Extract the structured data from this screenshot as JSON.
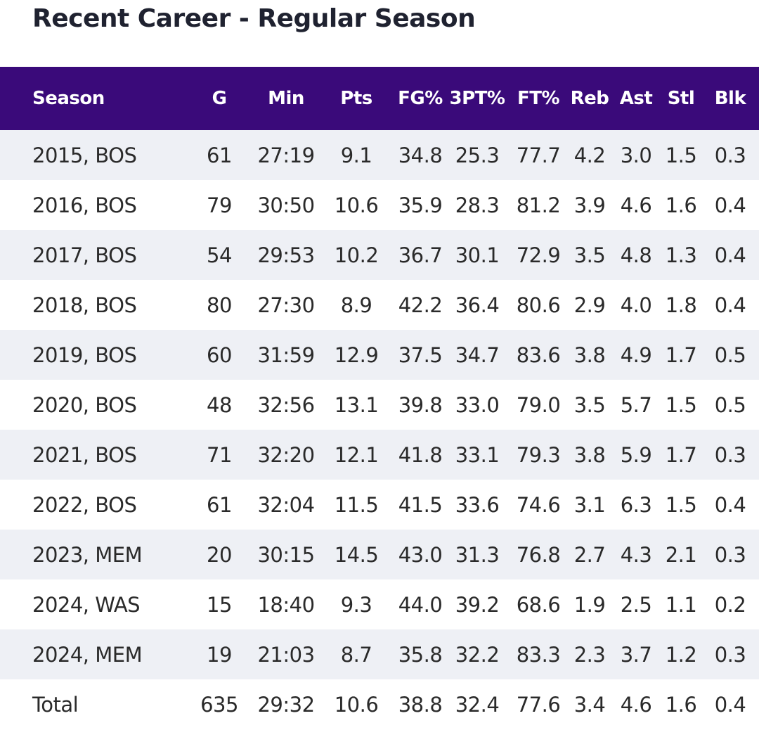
{
  "title": "Recent Career - Regular Season",
  "colors": {
    "header_bg": "#3a0a7a",
    "header_text": "#ffffff",
    "row_alt_bg": "#eef0f5",
    "title_text": "#1f2230"
  },
  "table": {
    "columns": [
      "Season",
      "G",
      "Min",
      "Pts",
      "FG%",
      "3PT%",
      "FT%",
      "Reb",
      "Ast",
      "Stl",
      "Blk"
    ],
    "rows": [
      [
        "2015, BOS",
        "61",
        "27:19",
        "9.1",
        "34.8",
        "25.3",
        "77.7",
        "4.2",
        "3.0",
        "1.5",
        "0.3"
      ],
      [
        "2016, BOS",
        "79",
        "30:50",
        "10.6",
        "35.9",
        "28.3",
        "81.2",
        "3.9",
        "4.6",
        "1.6",
        "0.4"
      ],
      [
        "2017, BOS",
        "54",
        "29:53",
        "10.2",
        "36.7",
        "30.1",
        "72.9",
        "3.5",
        "4.8",
        "1.3",
        "0.4"
      ],
      [
        "2018, BOS",
        "80",
        "27:30",
        "8.9",
        "42.2",
        "36.4",
        "80.6",
        "2.9",
        "4.0",
        "1.8",
        "0.4"
      ],
      [
        "2019, BOS",
        "60",
        "31:59",
        "12.9",
        "37.5",
        "34.7",
        "83.6",
        "3.8",
        "4.9",
        "1.7",
        "0.5"
      ],
      [
        "2020, BOS",
        "48",
        "32:56",
        "13.1",
        "39.8",
        "33.0",
        "79.0",
        "3.5",
        "5.7",
        "1.5",
        "0.5"
      ],
      [
        "2021, BOS",
        "71",
        "32:20",
        "12.1",
        "41.8",
        "33.1",
        "79.3",
        "3.8",
        "5.9",
        "1.7",
        "0.3"
      ],
      [
        "2022, BOS",
        "61",
        "32:04",
        "11.5",
        "41.5",
        "33.6",
        "74.6",
        "3.1",
        "6.3",
        "1.5",
        "0.4"
      ],
      [
        "2023, MEM",
        "20",
        "30:15",
        "14.5",
        "43.0",
        "31.3",
        "76.8",
        "2.7",
        "4.3",
        "2.1",
        "0.3"
      ],
      [
        "2024, WAS",
        "15",
        "18:40",
        "9.3",
        "44.0",
        "39.2",
        "68.6",
        "1.9",
        "2.5",
        "1.1",
        "0.2"
      ],
      [
        "2024, MEM",
        "19",
        "21:03",
        "8.7",
        "35.8",
        "32.2",
        "83.3",
        "2.3",
        "3.7",
        "1.2",
        "0.3"
      ]
    ],
    "total": [
      "Total",
      "635",
      "29:32",
      "10.6",
      "38.8",
      "32.4",
      "77.6",
      "3.4",
      "4.6",
      "1.6",
      "0.4"
    ]
  }
}
